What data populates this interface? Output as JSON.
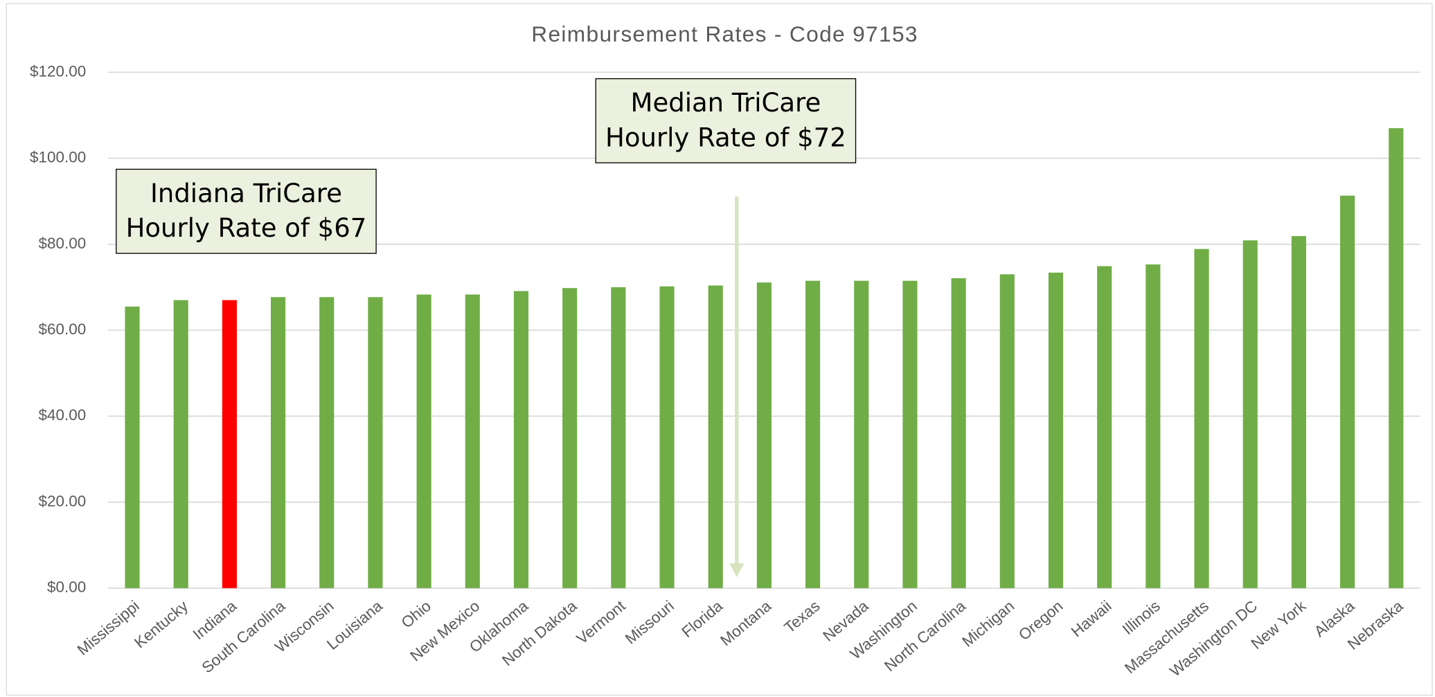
{
  "chart_data": {
    "type": "bar",
    "title": "Reimbursement Rates - Code 97153",
    "categories": [
      "Mississippi",
      "Kentucky",
      "Indiana",
      "South Carolina",
      "Wisconsin",
      "Louisiana",
      "Ohio",
      "New Mexico",
      "Oklahoma",
      "North Dakota",
      "Vermont",
      "Missouri",
      "Florida",
      "Montana",
      "Texas",
      "Nevada",
      "Washington",
      "North Carolina",
      "Michigan",
      "Oregon",
      "Hawaii",
      "Illinois",
      "Massachusetts",
      "Washington DC",
      "New York",
      "Alaska",
      "Nebraska"
    ],
    "values": [
      65.5,
      67,
      67,
      67.7,
      67.7,
      67.7,
      68.3,
      68.3,
      69.1,
      69.8,
      70,
      70.2,
      70.4,
      71.1,
      71.5,
      71.5,
      71.5,
      72.1,
      73,
      73.4,
      74.9,
      75.3,
      78.9,
      80.9,
      81.9,
      91.3,
      107
    ],
    "colors": [
      "#70ad47",
      "#70ad47",
      "#ff0000",
      "#70ad47",
      "#70ad47",
      "#70ad47",
      "#70ad47",
      "#70ad47",
      "#70ad47",
      "#70ad47",
      "#70ad47",
      "#70ad47",
      "#70ad47",
      "#70ad47",
      "#70ad47",
      "#70ad47",
      "#70ad47",
      "#70ad47",
      "#70ad47",
      "#70ad47",
      "#70ad47",
      "#70ad47",
      "#70ad47",
      "#70ad47",
      "#70ad47",
      "#70ad47",
      "#70ad47"
    ],
    "ylim": [
      0,
      120
    ],
    "yticks": [
      {
        "value": 0,
        "label": "$0.00"
      },
      {
        "value": 20,
        "label": "$20.00"
      },
      {
        "value": 40,
        "label": "$40.00"
      },
      {
        "value": 60,
        "label": "$60.00"
      },
      {
        "value": 80,
        "label": "$80.00"
      },
      {
        "value": 100,
        "label": "$100.00"
      },
      {
        "value": 120,
        "label": "$120.00"
      }
    ],
    "grid": true,
    "annotations": [
      {
        "lines": [
          "Indiana TriCare",
          "Hourly Rate of $67"
        ]
      },
      {
        "lines": [
          "Median TriCare",
          "Hourly Rate of $72"
        ]
      }
    ]
  }
}
